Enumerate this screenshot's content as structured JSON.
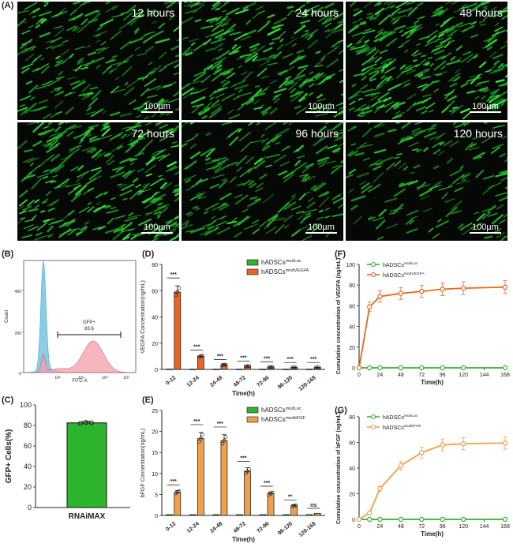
{
  "panel_labels": [
    "(A)",
    "(B)",
    "(C)",
    "(D)",
    "(E)",
    "(F)",
    "(G)"
  ],
  "micrographs": [
    {
      "time_label": "12 hours",
      "scale_label": "100µm",
      "density": 0.55
    },
    {
      "time_label": "24 hours",
      "scale_label": "100µm",
      "density": 0.75
    },
    {
      "time_label": "48 hours",
      "scale_label": "100µm",
      "density": 0.95
    },
    {
      "time_label": "72 hours",
      "scale_label": "100µm",
      "density": 0.85
    },
    {
      "time_label": "96 hours",
      "scale_label": "100µm",
      "density": 0.5
    },
    {
      "time_label": "120 hours",
      "scale_label": "100µm",
      "density": 0.3
    }
  ],
  "chart_data": [
    {
      "id": "B",
      "type": "area",
      "xlabel": "FITC-A",
      "ylabel": "Count",
      "gate_label": "GFP+",
      "gate_value": "83.6",
      "yticks": [
        "0",
        "200",
        "400"
      ],
      "xticks": [
        "10³",
        "10⁴",
        "10⁵",
        "10⁶"
      ]
    },
    {
      "id": "C",
      "type": "bar",
      "categories": [
        "RNAiMAX"
      ],
      "values": [
        82.5
      ],
      "points": [
        82,
        83,
        82.6
      ],
      "ylabel": "GFP+ Cells(%)",
      "ylim": [
        0,
        100
      ],
      "yticks": [
        0,
        20,
        40,
        60,
        80,
        100
      ]
    },
    {
      "id": "D",
      "type": "bar",
      "categories": [
        "0-12",
        "12-24",
        "24-48",
        "48-72",
        "72-96",
        "96-120",
        "120-168"
      ],
      "series": [
        {
          "legend_base": "hADSCs",
          "legend_sup": "modLuc",
          "values": [
            0.3,
            0.2,
            0.2,
            0.2,
            0.2,
            0.2,
            0.2
          ]
        },
        {
          "legend_base": "hADSCs",
          "legend_sup": "modVEGFA",
          "values": [
            59,
            10,
            3.5,
            2.5,
            1.8,
            1.5,
            1.5
          ]
        }
      ],
      "significance": [
        "***",
        "***",
        "***",
        "***",
        "***",
        "***",
        "***"
      ],
      "xlabel": "Time(h)",
      "ylabel": "VEGFA Concentration(ng/mL)",
      "ylim": [
        0,
        80
      ],
      "yticks": [
        0,
        20,
        40,
        60,
        80
      ]
    },
    {
      "id": "E",
      "type": "bar",
      "categories": [
        "0-12",
        "12-24",
        "24-48",
        "48-72",
        "72-96",
        "96-120",
        "120-168"
      ],
      "series": [
        {
          "legend_base": "hADSCs",
          "legend_sup": "modLuc",
          "values": [
            0.2,
            0.2,
            0.2,
            0.2,
            0.2,
            0.2,
            0.2
          ]
        },
        {
          "legend_base": "hADSCs",
          "legend_sup": "modbFGF",
          "values": [
            5.5,
            18.3,
            17.8,
            10.5,
            5.2,
            2.3,
            0.5
          ]
        }
      ],
      "significance": [
        "***",
        "***",
        "***",
        "***",
        "***",
        "**",
        "ns"
      ],
      "xlabel": "Time(h)",
      "ylabel": "bFGF Concentration(ng/mL)",
      "ylim": [
        0,
        25
      ],
      "yticks": [
        0,
        5,
        10,
        15,
        20,
        25
      ]
    },
    {
      "id": "F",
      "type": "line",
      "x": [
        0,
        12,
        24,
        48,
        72,
        96,
        120,
        168
      ],
      "series": [
        {
          "legend_base": "hADSCs",
          "legend_sup": "modLuc",
          "values": [
            0,
            0,
            0,
            0,
            0,
            0,
            0,
            0
          ]
        },
        {
          "legend_base": "hADSCs",
          "legend_sup": "modVEGFA",
          "values": [
            0,
            59,
            69,
            72,
            74,
            76,
            77,
            78
          ]
        }
      ],
      "xlabel": "Time(h)",
      "ylabel": "Cumulative concentration of VEGFA (ng/mL)",
      "ylim": [
        0,
        100
      ],
      "yticks": [
        0,
        20,
        40,
        60,
        80,
        100
      ],
      "xticks": [
        0,
        24,
        48,
        72,
        96,
        120,
        144,
        168
      ]
    },
    {
      "id": "G",
      "type": "line",
      "x": [
        0,
        12,
        24,
        48,
        72,
        96,
        120,
        168
      ],
      "series": [
        {
          "legend_base": "hADSCs",
          "legend_sup": "modLuc",
          "values": [
            0,
            0,
            0,
            0,
            0,
            0,
            0,
            0
          ]
        },
        {
          "legend_base": "hADSCs",
          "legend_sup": "modbFGF",
          "values": [
            0,
            5,
            24,
            42,
            52,
            58,
            59,
            59.5
          ]
        }
      ],
      "xlabel": "Time(h)",
      "ylabel": "Cumulative concentration of bFGF (ng/mL)",
      "ylim": [
        0,
        80
      ],
      "yticks": [
        0,
        20,
        40,
        60,
        80
      ],
      "xticks": [
        0,
        24,
        48,
        72,
        96,
        120,
        144,
        168
      ]
    }
  ],
  "colors": {
    "green": "#2db52d",
    "orange_d": "#e8671f",
    "orange_e": "#f0a04a",
    "flow_blue": "#7ec8e3",
    "flow_red": "#f2a0a8"
  }
}
